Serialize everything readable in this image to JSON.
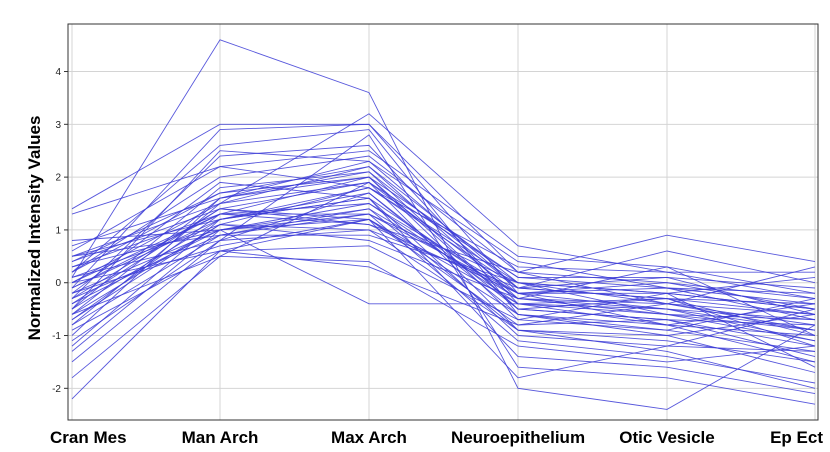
{
  "chart_data": {
    "type": "line",
    "ylabel": "Normalized Intensity Values",
    "categories": [
      "Cran Mes",
      "Man Arch",
      "Max Arch",
      "Neuroepithelium",
      "Otic Vesicle",
      "Ep Ect"
    ],
    "yticks": [
      4,
      3,
      2,
      1,
      0,
      -1,
      -2
    ],
    "ylim": [
      -2.6,
      4.9
    ],
    "grid": true,
    "line_color": "#3b3bd6",
    "series": [
      {
        "values": [
          -2.2,
          0.6,
          1.2,
          -1.8,
          -1.2,
          -0.5
        ]
      },
      {
        "values": [
          1.4,
          3.0,
          3.0,
          -0.2,
          -0.8,
          -1.5
        ]
      },
      {
        "values": [
          1.3,
          2.2,
          2.5,
          0.5,
          0.3,
          -1.0
        ]
      },
      {
        "values": [
          0.1,
          4.6,
          3.6,
          -2.0,
          -2.4,
          -0.8
        ]
      },
      {
        "values": [
          0.8,
          1.0,
          -0.4,
          -0.4,
          -0.3,
          -1.2
        ]
      },
      {
        "values": [
          0.5,
          1.5,
          3.2,
          0.7,
          0.2,
          -0.3
        ]
      },
      {
        "values": [
          -0.1,
          2.9,
          3.0,
          0.2,
          0.9,
          0.4
        ]
      },
      {
        "values": [
          -0.5,
          2.5,
          2.3,
          -0.1,
          0.6,
          0.0
        ]
      },
      {
        "values": [
          -1.5,
          0.8,
          2.8,
          -1.6,
          -1.8,
          -2.3
        ]
      },
      {
        "values": [
          -1.8,
          0.5,
          1.9,
          -0.9,
          -1.3,
          -2.0
        ]
      },
      {
        "values": [
          -1.2,
          1.2,
          1.7,
          -0.6,
          -1.0,
          -1.7
        ]
      },
      {
        "values": [
          -1.0,
          1.6,
          2.0,
          -0.5,
          -0.7,
          -1.4
        ]
      },
      {
        "values": [
          -0.8,
          0.9,
          1.4,
          -0.3,
          -0.6,
          -1.1
        ]
      },
      {
        "values": [
          -0.7,
          1.3,
          1.1,
          -0.2,
          -0.5,
          -0.9
        ]
      },
      {
        "values": [
          -0.6,
          1.1,
          1.8,
          0.0,
          -0.4,
          -0.8
        ]
      },
      {
        "values": [
          -0.5,
          1.8,
          2.1,
          -0.1,
          -0.3,
          -0.6
        ]
      },
      {
        "values": [
          -0.4,
          1.0,
          1.5,
          -0.2,
          -0.2,
          -0.5
        ]
      },
      {
        "values": [
          -0.3,
          1.4,
          1.9,
          0.1,
          -0.1,
          -0.4
        ]
      },
      {
        "values": [
          -0.2,
          0.7,
          1.2,
          -0.4,
          -0.5,
          -0.7
        ]
      },
      {
        "values": [
          -0.1,
          1.2,
          1.6,
          -0.3,
          -0.4,
          -0.6
        ]
      },
      {
        "values": [
          0.0,
          1.5,
          2.2,
          0.0,
          -0.2,
          -0.5
        ]
      },
      {
        "values": [
          0.1,
          1.1,
          1.0,
          -0.1,
          -0.3,
          -0.4
        ]
      },
      {
        "values": [
          0.2,
          2.0,
          2.4,
          0.2,
          0.0,
          -0.3
        ]
      },
      {
        "values": [
          0.3,
          1.3,
          1.3,
          -0.2,
          -0.1,
          -0.2
        ]
      },
      {
        "values": [
          0.4,
          1.7,
          2.0,
          0.1,
          0.1,
          -0.1
        ]
      },
      {
        "values": [
          0.5,
          0.9,
          0.9,
          0.0,
          -0.2,
          0.1
        ]
      },
      {
        "values": [
          0.6,
          2.2,
          1.8,
          0.3,
          0.2,
          0.2
        ]
      },
      {
        "values": [
          -0.9,
          0.6,
          0.7,
          -0.7,
          -0.9,
          -1.3
        ]
      },
      {
        "values": [
          -1.1,
          0.8,
          1.0,
          -0.9,
          -1.1,
          -1.5
        ]
      },
      {
        "values": [
          -1.3,
          1.0,
          1.3,
          -1.1,
          -1.4,
          -1.9
        ]
      },
      {
        "values": [
          -0.3,
          2.4,
          2.6,
          -0.4,
          -0.6,
          -0.9
        ]
      },
      {
        "values": [
          0.2,
          2.6,
          2.9,
          -0.6,
          -0.8,
          -1.0
        ]
      },
      {
        "values": [
          -0.6,
          0.5,
          0.4,
          -1.2,
          -1.5,
          -1.2
        ]
      },
      {
        "values": [
          0.0,
          0.6,
          0.3,
          -0.8,
          -0.4,
          0.3
        ]
      },
      {
        "values": [
          -0.2,
          1.9,
          1.6,
          -1.4,
          -1.6,
          -2.1
        ]
      },
      {
        "values": [
          0.7,
          1.6,
          2.3,
          0.4,
          -0.1,
          -0.7
        ]
      },
      {
        "values": [
          -0.4,
          1.4,
          1.2,
          -0.6,
          -0.9,
          -0.3
        ]
      },
      {
        "values": [
          0.1,
          0.8,
          1.7,
          -0.5,
          -0.7,
          -0.8
        ]
      },
      {
        "values": [
          -0.7,
          1.1,
          0.8,
          -0.3,
          0.3,
          -0.2
        ]
      },
      {
        "values": [
          -0.1,
          1.3,
          2.0,
          -0.7,
          -0.2,
          -1.6
        ]
      },
      {
        "values": [
          0.3,
          1.0,
          1.4,
          -0.9,
          -1.0,
          -0.6
        ]
      },
      {
        "values": [
          -0.5,
          1.2,
          1.6,
          -1.0,
          -1.2,
          -1.3
        ]
      },
      {
        "values": [
          0.4,
          1.4,
          1.1,
          0.2,
          -0.4,
          -0.9
        ]
      },
      {
        "values": [
          -0.8,
          1.5,
          1.9,
          -0.2,
          0.0,
          -0.5
        ]
      },
      {
        "values": [
          0.2,
          1.7,
          2.2,
          -0.3,
          -0.5,
          -1.1
        ]
      },
      {
        "values": [
          -0.3,
          0.9,
          1.3,
          0.0,
          -0.6,
          -0.7
        ]
      },
      {
        "values": [
          0.0,
          1.3,
          1.5,
          -0.4,
          -0.8,
          -0.4
        ]
      },
      {
        "values": [
          -0.6,
          1.6,
          2.1,
          -0.5,
          -0.3,
          -1.0
        ]
      },
      {
        "values": [
          0.5,
          1.2,
          1.8,
          -0.1,
          0.1,
          -0.6
        ]
      },
      {
        "values": [
          -0.2,
          1.0,
          1.2,
          -0.8,
          -0.7,
          -1.2
        ]
      }
    ]
  }
}
